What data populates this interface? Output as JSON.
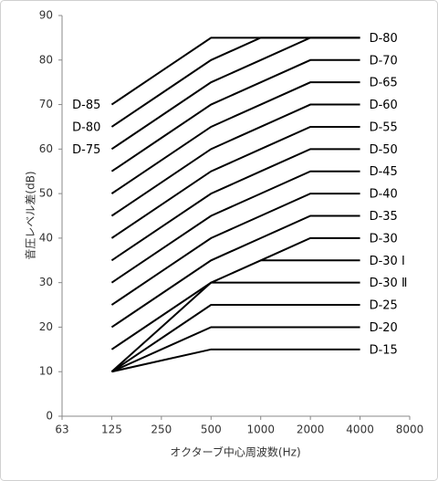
{
  "chart_data": {
    "type": "line",
    "x_label": "オクターブ中心周波数(Hz)",
    "y_label": "音圧レベル差(dB)",
    "categories": [
      "63",
      "125",
      "250",
      "500",
      "1000",
      "2000",
      "4000",
      "8000"
    ],
    "ylim": [
      0,
      90
    ],
    "yticks": [
      0,
      10,
      20,
      30,
      40,
      50,
      60,
      70,
      80,
      90
    ],
    "series": [
      {
        "name": "D-85",
        "color": "#000000",
        "label_position": "left",
        "values": [
          null,
          70,
          77.5,
          85,
          85,
          85,
          85,
          null
        ]
      },
      {
        "name": "D-80",
        "color": "#000000",
        "label_position": "left",
        "values": [
          null,
          65,
          72.5,
          80,
          85,
          85,
          85,
          null
        ]
      },
      {
        "name": "D-75",
        "color": "#000000",
        "label_position": "left",
        "values": [
          null,
          60,
          67.5,
          75,
          80,
          85,
          85,
          null
        ]
      },
      {
        "name": "D-70",
        "color": "#000000",
        "label_position": "right",
        "values": [
          null,
          55,
          62.5,
          70,
          75,
          80,
          80,
          null
        ]
      },
      {
        "name": "D-65",
        "color": "#000000",
        "label_position": "right",
        "values": [
          null,
          50,
          57.5,
          65,
          70,
          75,
          75,
          null
        ]
      },
      {
        "name": "D-60",
        "color": "#000000",
        "label_position": "right",
        "values": [
          null,
          45,
          52.5,
          60,
          65,
          70,
          70,
          null
        ]
      },
      {
        "name": "D-55",
        "color": "#000000",
        "label_position": "right",
        "values": [
          null,
          40,
          47.5,
          55,
          60,
          65,
          65,
          null
        ]
      },
      {
        "name": "D-50",
        "color": "#000000",
        "label_position": "right",
        "values": [
          null,
          35,
          42.5,
          50,
          55,
          60,
          60,
          null
        ]
      },
      {
        "name": "D-45",
        "color": "#000000",
        "label_position": "right",
        "values": [
          null,
          30,
          37.5,
          45,
          50,
          55,
          55,
          null
        ]
      },
      {
        "name": "D-40",
        "color": "#000000",
        "label_position": "right",
        "values": [
          null,
          25,
          32.5,
          40,
          45,
          50,
          50,
          null
        ]
      },
      {
        "name": "D-35",
        "color": "#000000",
        "label_position": "right",
        "values": [
          null,
          20,
          27.5,
          35,
          40,
          45,
          45,
          null
        ]
      },
      {
        "name": "D-30",
        "color": "#000000",
        "label_position": "right",
        "values": [
          null,
          15,
          22.5,
          30,
          35,
          40,
          40,
          null
        ]
      },
      {
        "name": "D-30 Ⅰ",
        "color": "#000000",
        "label_position": "right",
        "values": [
          null,
          null,
          null,
          null,
          35,
          35,
          35,
          null
        ]
      },
      {
        "name": "D-30 Ⅱ",
        "color": "#000000",
        "label_position": "right",
        "values": [
          null,
          10,
          20,
          30,
          30,
          30,
          30,
          null
        ]
      },
      {
        "name": "D-25",
        "color": "#000000",
        "label_position": "right",
        "values": [
          null,
          10,
          17.5,
          25,
          25,
          25,
          25,
          null
        ]
      },
      {
        "name": "D-20",
        "color": "#000000",
        "label_position": "right",
        "values": [
          null,
          10,
          15,
          20,
          20,
          20,
          20,
          null
        ]
      },
      {
        "name": "D-15",
        "color": "#000000",
        "label_position": "right",
        "values": [
          null,
          10,
          12.5,
          15,
          15,
          15,
          15,
          null
        ]
      }
    ],
    "annotations": [
      {
        "text": "D-80",
        "y": 85
      }
    ]
  }
}
